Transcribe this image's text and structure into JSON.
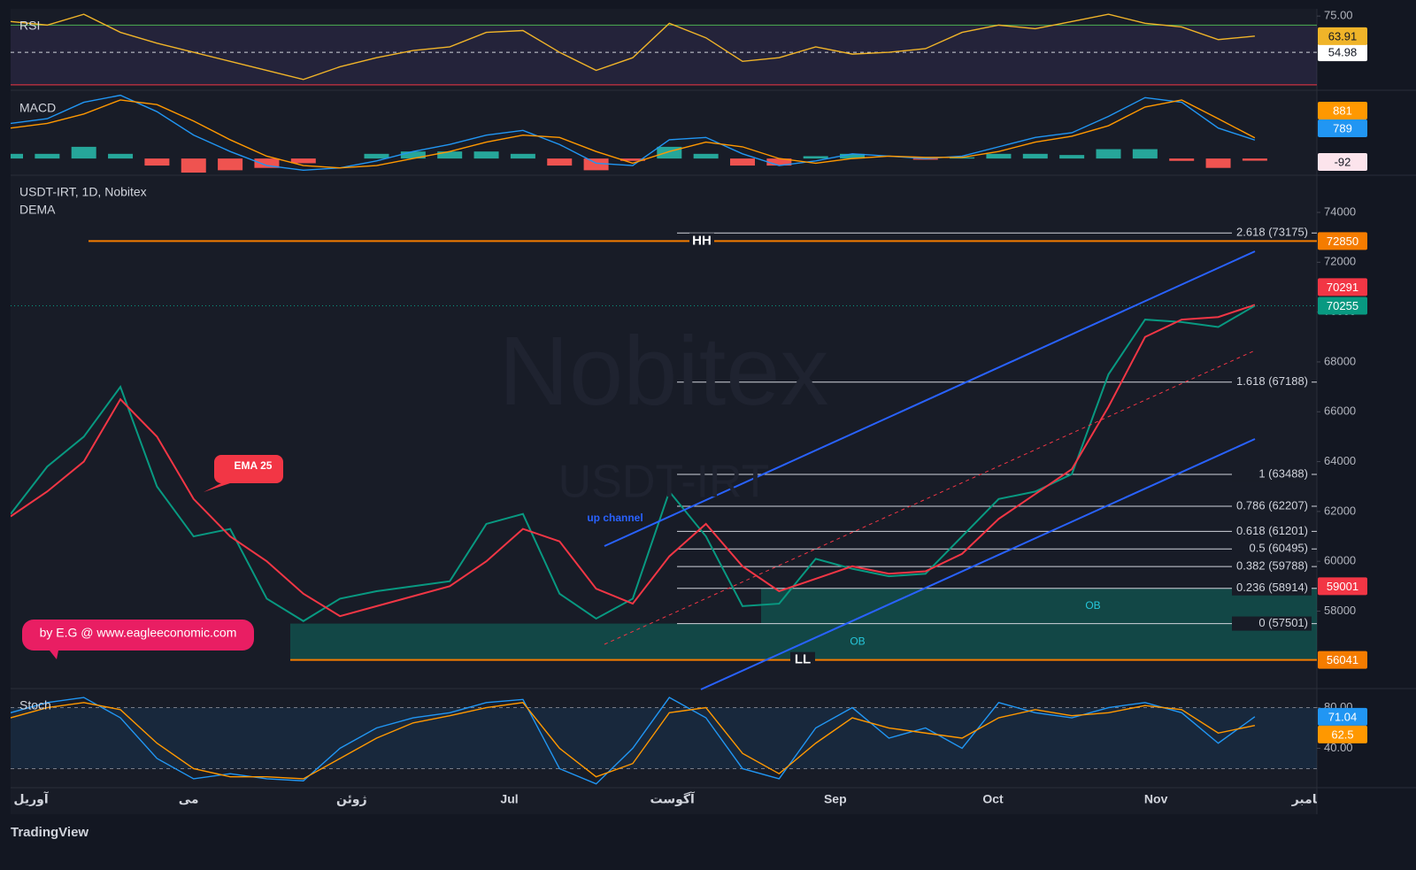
{
  "chart_data": [
    {
      "type": "line",
      "title": "RSI",
      "ylim": [
        35,
        78
      ],
      "yticks": [
        {
          "value": 75,
          "label": "75.00"
        }
      ],
      "upper_band": 70,
      "lower_band": 37,
      "mid_line": 54.98,
      "series": [
        {
          "color": "#f0b429",
          "values": [
            72,
            70,
            76,
            66,
            60,
            55,
            50,
            45,
            40,
            47,
            52,
            56,
            58,
            66,
            67,
            55,
            45,
            52,
            71,
            63,
            50,
            52,
            58,
            54,
            55,
            57,
            66,
            70,
            68,
            72,
            76,
            71,
            69,
            62,
            63.91
          ]
        }
      ]
    },
    {
      "type": "macd",
      "title": "MACD",
      "ylim": [
        -600,
        2800
      ],
      "series": [
        {
          "color": "#2196f3",
          "values": [
            1500,
            1700,
            2400,
            2700,
            2000,
            1000,
            300,
            -300,
            -500,
            -400,
            -100,
            300,
            600,
            1000,
            1200,
            600,
            -200,
            -300,
            800,
            900,
            200,
            -300,
            -100,
            200,
            100,
            0,
            100,
            500,
            900,
            1100,
            1800,
            2600,
            2400,
            1300,
            789
          ]
        },
        {
          "color": "#ff9800",
          "values": [
            1300,
            1500,
            1900,
            2500,
            2300,
            1600,
            800,
            100,
            -300,
            -400,
            -300,
            0,
            300,
            700,
            1000,
            900,
            300,
            -200,
            300,
            700,
            500,
            0,
            -200,
            0,
            100,
            50,
            50,
            300,
            700,
            950,
            1400,
            2200,
            2500,
            1700,
            881
          ]
        }
      ],
      "histogram": {
        "up_color": "#26a69a",
        "down_color": "#ef5350",
        "values": [
          200,
          200,
          500,
          200,
          -300,
          -600,
          -500,
          -400,
          -200,
          0,
          200,
          300,
          300,
          300,
          200,
          -300,
          -500,
          -100,
          500,
          200,
          -300,
          -300,
          100,
          200,
          0,
          -50,
          50,
          200,
          200,
          150,
          400,
          400,
          -100,
          -400,
          -92
        ]
      }
    },
    {
      "type": "line",
      "title": "USDT-IRT, 1D, Nobitex",
      "subtitle": "DEMA",
      "ylim": [
        55000,
        75420
      ],
      "yticks": [
        58000,
        60000,
        62000,
        64000,
        66000,
        68000,
        70000,
        72000,
        74000
      ],
      "series": [
        {
          "color": "#089981",
          "values": [
            61900,
            63800,
            65000,
            67000,
            63000,
            61000,
            61300,
            58500,
            57600,
            58500,
            58800,
            59000,
            59200,
            61500,
            61900,
            58700,
            57700,
            58500,
            62800,
            61000,
            58200,
            58300,
            60100,
            59700,
            59400,
            59500,
            61000,
            62500,
            62800,
            63500,
            67500,
            69700,
            69600,
            69400,
            70255
          ]
        },
        {
          "name": "EMA 25",
          "color": "#f23645",
          "values": [
            61800,
            62800,
            64000,
            66500,
            65000,
            62500,
            61000,
            60000,
            58700,
            57800,
            58200,
            58600,
            59000,
            60000,
            61300,
            60800,
            58900,
            58300,
            60200,
            61500,
            59800,
            58800,
            59300,
            59800,
            59500,
            59600,
            60300,
            61700,
            62700,
            63700,
            66200,
            69000,
            69700,
            69800,
            70291
          ]
        }
      ],
      "levels": [
        {
          "label": "HH",
          "value": 72850,
          "color": "#f57c00"
        },
        {
          "label": "LL",
          "value": 56041,
          "color": "#f57c00"
        }
      ],
      "fib": [
        {
          "label": "2.618 (73175)",
          "value": 73175
        },
        {
          "label": "1.618 (67188)",
          "value": 67188
        },
        {
          "label": "1 (63488)",
          "value": 63488
        },
        {
          "label": "0.786 (62207)",
          "value": 62207
        },
        {
          "label": "0.618 (61201)",
          "value": 61201
        },
        {
          "label": "0.5 (60495)",
          "value": 60495
        },
        {
          "label": "0.382 (59788)",
          "value": 59788
        },
        {
          "label": "0.236 (58914)",
          "value": 58914
        },
        {
          "label": "0 (57501)",
          "value": 57501
        }
      ],
      "zones": [
        {
          "label": "OB",
          "range": [
            57501,
            58914
          ]
        },
        {
          "label": "OB",
          "range": [
            56041,
            57501
          ]
        }
      ],
      "price_labels": [
        {
          "value": 59001,
          "color": "#f23645"
        }
      ],
      "annotations": [
        "up channel",
        "by E.G @ www.eagleeconomic.com"
      ],
      "watermark": [
        "Nobitex",
        "USDT-IRT"
      ]
    },
    {
      "type": "line",
      "title": "Stoch",
      "ylim": [
        3,
        97
      ],
      "yticks": [
        {
          "value": 80,
          "label": "80.00"
        },
        {
          "value": 40,
          "label": "40.00"
        }
      ],
      "bands": [
        80,
        20
      ],
      "series": [
        {
          "color": "#2196f3",
          "values": [
            75,
            85,
            90,
            70,
            30,
            10,
            15,
            10,
            8,
            40,
            60,
            70,
            75,
            85,
            88,
            20,
            5,
            40,
            90,
            70,
            20,
            10,
            60,
            80,
            50,
            60,
            40,
            85,
            75,
            70,
            80,
            85,
            75,
            45,
            71.04
          ]
        },
        {
          "color": "#ff9800",
          "values": [
            70,
            80,
            85,
            78,
            45,
            20,
            12,
            12,
            10,
            30,
            50,
            65,
            72,
            80,
            85,
            40,
            12,
            25,
            75,
            80,
            35,
            15,
            45,
            70,
            60,
            55,
            50,
            70,
            78,
            72,
            75,
            82,
            78,
            55,
            62.5
          ]
        }
      ]
    }
  ],
  "time_axis": [
    "آوریل",
    "می",
    "ژوئن",
    "Jul",
    "آگوست",
    "Sep",
    "Oct",
    "Nov",
    "دسامبر"
  ],
  "footer": "TradingView"
}
